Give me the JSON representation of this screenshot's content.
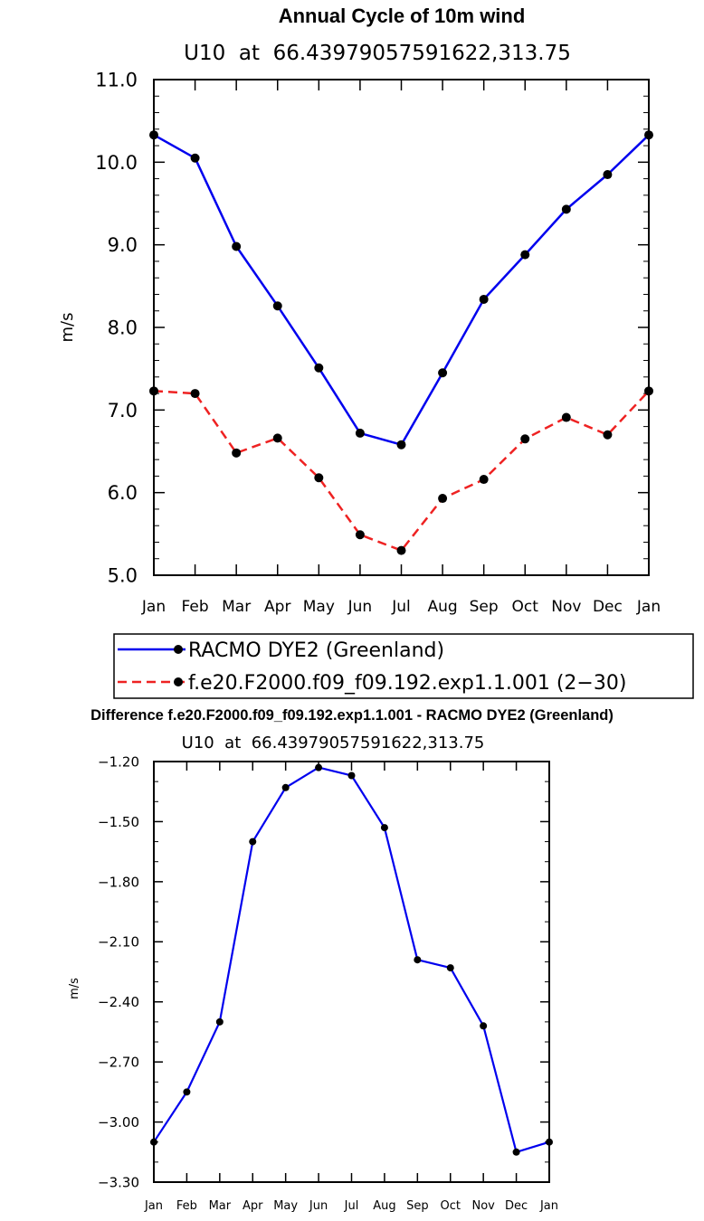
{
  "chart_data": [
    {
      "type": "line",
      "title": "Annual Cycle of 10m wind",
      "subtitle": "U10  at  66.43979057591622,313.75",
      "xlabel": "",
      "ylabel": "m/s",
      "ylim": [
        5.0,
        11.0
      ],
      "yticks": [
        "5.0",
        "6.0",
        "7.0",
        "8.0",
        "9.0",
        "10.0",
        "11.0"
      ],
      "categories": [
        "Jan",
        "Feb",
        "Mar",
        "Apr",
        "May",
        "Jun",
        "Jul",
        "Aug",
        "Sep",
        "Oct",
        "Nov",
        "Dec",
        "Jan"
      ],
      "series": [
        {
          "name": "RACMO DYE2 (Greenland)",
          "color": "#0000ee",
          "dash": "solid",
          "values": [
            10.33,
            10.05,
            8.98,
            8.26,
            7.51,
            6.72,
            6.58,
            7.45,
            8.34,
            8.88,
            9.43,
            9.85,
            10.33
          ]
        },
        {
          "name": "f.e20.F2000.f09_f09.192.exp1.1.001 (2−30)",
          "color": "#ee2222",
          "dash": "dashed",
          "values": [
            7.23,
            7.2,
            6.48,
            6.66,
            6.18,
            5.49,
            5.3,
            5.93,
            6.16,
            6.65,
            6.91,
            6.7,
            7.23
          ]
        }
      ]
    },
    {
      "type": "line",
      "title": "Difference f.e20.F2000.f09_f09.192.exp1.1.001 - RACMO DYE2 (Greenland)",
      "subtitle": "U10  at  66.43979057591622,313.75",
      "xlabel": "",
      "ylabel": "m/s",
      "ylim": [
        -3.3,
        -1.2
      ],
      "yticks": [
        "−3.30",
        "−3.00",
        "−2.70",
        "−2.40",
        "−2.10",
        "−1.80",
        "−1.50",
        "−1.20"
      ],
      "categories": [
        "Jan",
        "Feb",
        "Mar",
        "Apr",
        "May",
        "Jun",
        "Jul",
        "Aug",
        "Sep",
        "Oct",
        "Nov",
        "Dec",
        "Jan"
      ],
      "series": [
        {
          "name": "Difference",
          "color": "#0000ee",
          "dash": "solid",
          "values": [
            -3.1,
            -2.85,
            -2.5,
            -1.6,
            -1.33,
            -1.23,
            -1.27,
            -1.53,
            -2.19,
            -2.23,
            -2.52,
            -3.15,
            -3.1
          ]
        }
      ]
    }
  ]
}
